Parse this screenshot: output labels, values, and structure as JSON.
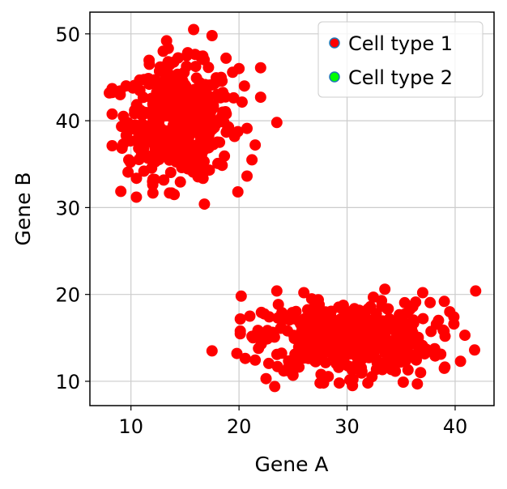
{
  "chart_data": {
    "type": "scatter",
    "title": "",
    "xlabel": "Gene A",
    "ylabel": "Gene B",
    "xlim": [
      6.2,
      43.6
    ],
    "ylim": [
      7.2,
      52.5
    ],
    "xticks": [
      10,
      20,
      30,
      40
    ],
    "yticks": [
      10,
      20,
      30,
      40,
      50
    ],
    "grid": true,
    "legend_position": "top-right",
    "series": [
      {
        "name": "Cell type 1",
        "fill": "#ff0000",
        "edge": "#1f77b4",
        "clusters": [
          {
            "center": [
              14.5,
              40.0
            ],
            "spread": [
              2.4,
              3.2
            ],
            "count": 500
          },
          {
            "center": [
              30.0,
              15.0
            ],
            "spread": [
              3.8,
              2.0
            ],
            "count": 500
          }
        ],
        "outliers": [
          [
            8.0,
            43.2
          ],
          [
            9.0,
            43.0
          ],
          [
            10.5,
            31.2
          ],
          [
            12.0,
            33.0
          ],
          [
            13.3,
            49.2
          ],
          [
            15.8,
            50.5
          ],
          [
            17.5,
            49.8
          ],
          [
            16.8,
            30.4
          ],
          [
            14.0,
            31.5
          ],
          [
            22.0,
            46.1
          ],
          [
            23.5,
            39.8
          ],
          [
            21.2,
            35.5
          ],
          [
            21.5,
            37.2
          ],
          [
            20.0,
            46.0
          ],
          [
            9.3,
            40.5
          ],
          [
            9.8,
            35.5
          ],
          [
            18.8,
            47.2
          ],
          [
            11.7,
            46.5
          ],
          [
            22.0,
            42.7
          ],
          [
            20.5,
            44.0
          ],
          [
            20.2,
            19.8
          ],
          [
            17.5,
            13.5
          ],
          [
            19.8,
            13.2
          ],
          [
            21.0,
            17.5
          ],
          [
            23.3,
            9.4
          ],
          [
            30.5,
            9.5
          ],
          [
            36.5,
            9.7
          ],
          [
            39.0,
            11.5
          ],
          [
            41.8,
            13.6
          ],
          [
            40.5,
            12.3
          ],
          [
            40.9,
            15.3
          ],
          [
            41.9,
            20.4
          ],
          [
            37.0,
            20.2
          ],
          [
            39.0,
            19.2
          ],
          [
            33.5,
            20.6
          ],
          [
            23.5,
            20.4
          ],
          [
            26.0,
            20.2
          ],
          [
            37.8,
            13.5
          ],
          [
            36.8,
            11.0
          ],
          [
            25.0,
            10.7
          ],
          [
            39.5,
            18.0
          ],
          [
            22.5,
            10.3
          ],
          [
            35.2,
            9.9
          ],
          [
            27.5,
            9.8
          ],
          [
            21.3,
            15.0
          ]
        ]
      },
      {
        "name": "Cell type 2",
        "fill": "#00ff00",
        "edge": "#1f77b4",
        "clusters": [],
        "outliers": []
      }
    ]
  }
}
